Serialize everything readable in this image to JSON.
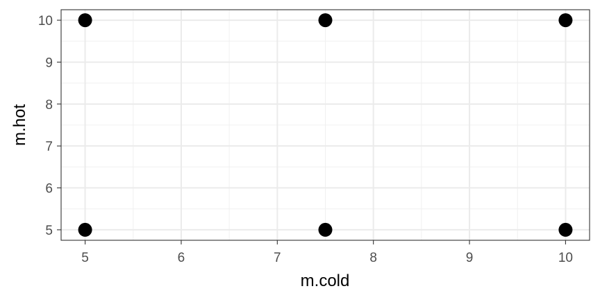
{
  "chart_data": {
    "type": "scatter",
    "title": "",
    "xlabel": "m.cold",
    "ylabel": "m.hot",
    "xlim": [
      4.75,
      10.25
    ],
    "ylim": [
      4.75,
      10.25
    ],
    "x_ticks": [
      5,
      6,
      7,
      8,
      9,
      10
    ],
    "y_ticks": [
      5,
      6,
      7,
      8,
      9,
      10
    ],
    "x_tick_labels": [
      "5",
      "6",
      "7",
      "8",
      "9",
      "10"
    ],
    "y_tick_labels": [
      "5",
      "6",
      "7",
      "8",
      "9",
      "10"
    ],
    "grid": true,
    "theme": "bw",
    "point_color": "#000000",
    "points": [
      {
        "x": 5,
        "y": 10
      },
      {
        "x": 7.5,
        "y": 10
      },
      {
        "x": 10,
        "y": 10
      },
      {
        "x": 5,
        "y": 5
      },
      {
        "x": 7.5,
        "y": 5
      },
      {
        "x": 10,
        "y": 5
      }
    ]
  }
}
